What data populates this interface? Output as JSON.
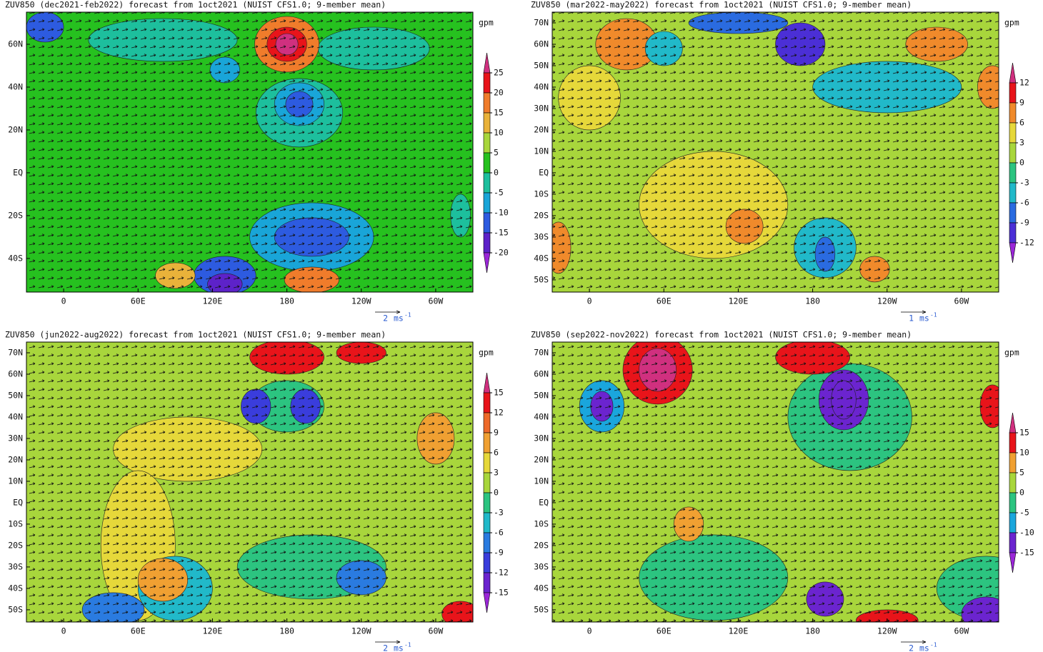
{
  "panels": [
    {
      "title": "ZUV850 (dec2021-feb2022) forecast from 1oct2021 (NUIST CFS1.0; 9-member mean)",
      "unit": "gpm",
      "xlim": [
        -30,
        330
      ],
      "ylim": [
        -55.7,
        75
      ],
      "xticks": [
        0,
        {
          "value": 60,
          "label": "60E"
        },
        {
          "value": 120,
          "label": "120E"
        },
        180,
        {
          "value": 240,
          "label": "120W"
        },
        {
          "value": 300,
          "label": "60W"
        }
      ],
      "yticks": [
        {
          "value": 60,
          "label": "60N"
        },
        {
          "value": 40,
          "label": "40N"
        },
        {
          "value": 20,
          "label": "20N"
        },
        {
          "value": 0,
          "label": "EQ"
        },
        {
          "value": -20,
          "label": "20S"
        },
        {
          "value": -40,
          "label": "40S"
        }
      ],
      "colorbar_ticks": [
        25,
        20,
        15,
        10,
        5,
        0,
        -5,
        -10,
        -15,
        -20
      ],
      "colors": [
        "#d0307f",
        "#e8141a",
        "#f07c2b",
        "#e9b23a",
        "#a8d63c",
        "#26c11f",
        "#1dbf9d",
        "#19a5d8",
        "#2d5be0",
        "#5d22c9",
        "#9b26d8"
      ],
      "vector_scale": "2",
      "vector_unit": "ms",
      "vector_unit_exp": "-1"
    },
    {
      "title": "ZUV850 (mar2022-may2022) forecast from 1oct2021 (NUIST CFS1.0; 9-member mean)",
      "unit": "gpm",
      "xlim": [
        -30,
        330
      ],
      "ylim": [
        -55.7,
        75
      ],
      "xticks": [
        0,
        {
          "value": 60,
          "label": "60E"
        },
        {
          "value": 120,
          "label": "120E"
        },
        180,
        {
          "value": 240,
          "label": "120W"
        },
        {
          "value": 300,
          "label": "60W"
        }
      ],
      "yticks": [
        {
          "value": 70,
          "label": "70N"
        },
        {
          "value": 60,
          "label": "60N"
        },
        {
          "value": 50,
          "label": "50N"
        },
        {
          "value": 40,
          "label": "40N"
        },
        {
          "value": 30,
          "label": "30N"
        },
        {
          "value": 20,
          "label": "20N"
        },
        {
          "value": 10,
          "label": "10N"
        },
        {
          "value": 0,
          "label": "EQ"
        },
        {
          "value": -10,
          "label": "10S"
        },
        {
          "value": -20,
          "label": "20S"
        },
        {
          "value": -30,
          "label": "30S"
        },
        {
          "value": -40,
          "label": "40S"
        },
        {
          "value": -50,
          "label": "50S"
        }
      ],
      "colorbar_ticks": [
        12,
        9,
        6,
        3,
        0,
        -3,
        -6,
        -9,
        -12
      ],
      "colors": [
        "#d0307f",
        "#e8141a",
        "#f08a2b",
        "#e6d83a",
        "#a8d63c",
        "#2cc480",
        "#21b9c9",
        "#2a6be0",
        "#4b2fd6",
        "#9b26d8"
      ],
      "vector_scale": "1",
      "vector_unit": "ms",
      "vector_unit_exp": "-1"
    },
    {
      "title": "ZUV850 (jun2022-aug2022) forecast from 1oct2021 (NUIST CFS1.0; 9-member mean)",
      "unit": "gpm",
      "xlim": [
        -30,
        330
      ],
      "ylim": [
        -55.7,
        75
      ],
      "xticks": [
        0,
        {
          "value": 60,
          "label": "60E"
        },
        {
          "value": 120,
          "label": "120E"
        },
        180,
        {
          "value": 240,
          "label": "120W"
        },
        {
          "value": 300,
          "label": "60W"
        }
      ],
      "yticks": [
        {
          "value": 70,
          "label": "70N"
        },
        {
          "value": 60,
          "label": "60N"
        },
        {
          "value": 50,
          "label": "50N"
        },
        {
          "value": 40,
          "label": "40N"
        },
        {
          "value": 30,
          "label": "30N"
        },
        {
          "value": 20,
          "label": "20N"
        },
        {
          "value": 10,
          "label": "10N"
        },
        {
          "value": 0,
          "label": "EQ"
        },
        {
          "value": -10,
          "label": "10S"
        },
        {
          "value": -20,
          "label": "20S"
        },
        {
          "value": -30,
          "label": "30S"
        },
        {
          "value": -40,
          "label": "40S"
        },
        {
          "value": -50,
          "label": "50S"
        }
      ],
      "colorbar_ticks": [
        15,
        12,
        9,
        6,
        3,
        0,
        -3,
        -6,
        -9,
        -12,
        -15
      ],
      "colors": [
        "#d0307f",
        "#e8141a",
        "#ee6a2a",
        "#f0a032",
        "#e6d83a",
        "#a8d63c",
        "#2cc480",
        "#21b9c9",
        "#2a7be0",
        "#3a3ddc",
        "#6b24cf",
        "#9b26d8"
      ],
      "vector_scale": "2",
      "vector_unit": "ms",
      "vector_unit_exp": "-1"
    },
    {
      "title": "ZUV850 (sep2022-nov2022) forecast from 1oct2021 (NUIST CFS1.0; 9-member mean)",
      "unit": "gpm",
      "xlim": [
        -30,
        330
      ],
      "ylim": [
        -55.7,
        75
      ],
      "xticks": [
        0,
        {
          "value": 60,
          "label": "60E"
        },
        {
          "value": 120,
          "label": "120E"
        },
        180,
        {
          "value": 240,
          "label": "120W"
        },
        {
          "value": 300,
          "label": "60W"
        }
      ],
      "yticks": [
        {
          "value": 70,
          "label": "70N"
        },
        {
          "value": 60,
          "label": "60N"
        },
        {
          "value": 50,
          "label": "50N"
        },
        {
          "value": 40,
          "label": "40N"
        },
        {
          "value": 30,
          "label": "30N"
        },
        {
          "value": 20,
          "label": "20N"
        },
        {
          "value": 10,
          "label": "10N"
        },
        {
          "value": 0,
          "label": "EQ"
        },
        {
          "value": -10,
          "label": "10S"
        },
        {
          "value": -20,
          "label": "20S"
        },
        {
          "value": -30,
          "label": "30S"
        },
        {
          "value": -40,
          "label": "40S"
        },
        {
          "value": -50,
          "label": "50S"
        }
      ],
      "colorbar_ticks": [
        15,
        10,
        5,
        0,
        -5,
        -10,
        -15
      ],
      "colors": [
        "#d0307f",
        "#e8141a",
        "#f0a032",
        "#a8d63c",
        "#2cc480",
        "#1aa6dc",
        "#6b24cf",
        "#9b26d8"
      ],
      "vector_scale": "2",
      "vector_unit": "ms",
      "vector_unit_exp": "-1"
    }
  ]
}
